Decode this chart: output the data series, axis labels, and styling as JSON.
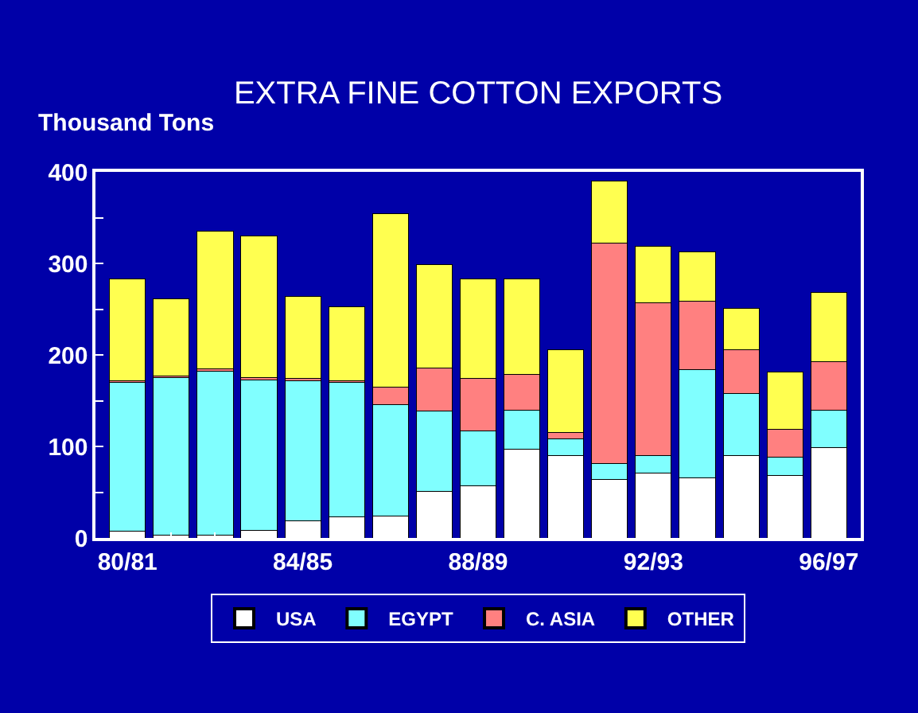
{
  "chart_data": {
    "type": "bar",
    "stacked": true,
    "title": "EXTRA FINE COTTON EXPORTS",
    "ylabel": "Thousand Tons",
    "categories": [
      "80/81",
      null,
      null,
      null,
      "84/85",
      null,
      null,
      null,
      "88/89",
      null,
      null,
      null,
      "92/93",
      null,
      null,
      null,
      "96/97"
    ],
    "series": [
      {
        "name": "USA",
        "color": "#ffffff",
        "values": [
          7,
          3,
          3,
          8,
          19,
          23,
          24,
          51,
          57,
          97,
          90,
          64,
          71,
          66,
          90,
          68,
          99
        ]
      },
      {
        "name": "EGYPT",
        "color": "#80ffff",
        "values": [
          163,
          172,
          179,
          165,
          153,
          147,
          122,
          88,
          60,
          43,
          18,
          17,
          19,
          118,
          68,
          20,
          41
        ]
      },
      {
        "name": "C. ASIA",
        "color": "#ff8080",
        "values": [
          2,
          2,
          3,
          2,
          2,
          2,
          19,
          47,
          57,
          39,
          7,
          241,
          167,
          75,
          48,
          31,
          53
        ]
      },
      {
        "name": "OTHER",
        "color": "#ffff50",
        "values": [
          111,
          84,
          150,
          155,
          90,
          81,
          189,
          113,
          109,
          104,
          91,
          68,
          62,
          54,
          45,
          62,
          75
        ]
      }
    ],
    "ylim": [
      0,
      400
    ],
    "yticks": [
      0,
      {
        "value": 50,
        "label": null
      },
      100,
      {
        "value": 150,
        "label": null
      },
      200,
      {
        "value": 250,
        "label": null
      },
      300,
      {
        "value": 350,
        "label": null
      },
      400
    ],
    "legend": "bottom"
  }
}
